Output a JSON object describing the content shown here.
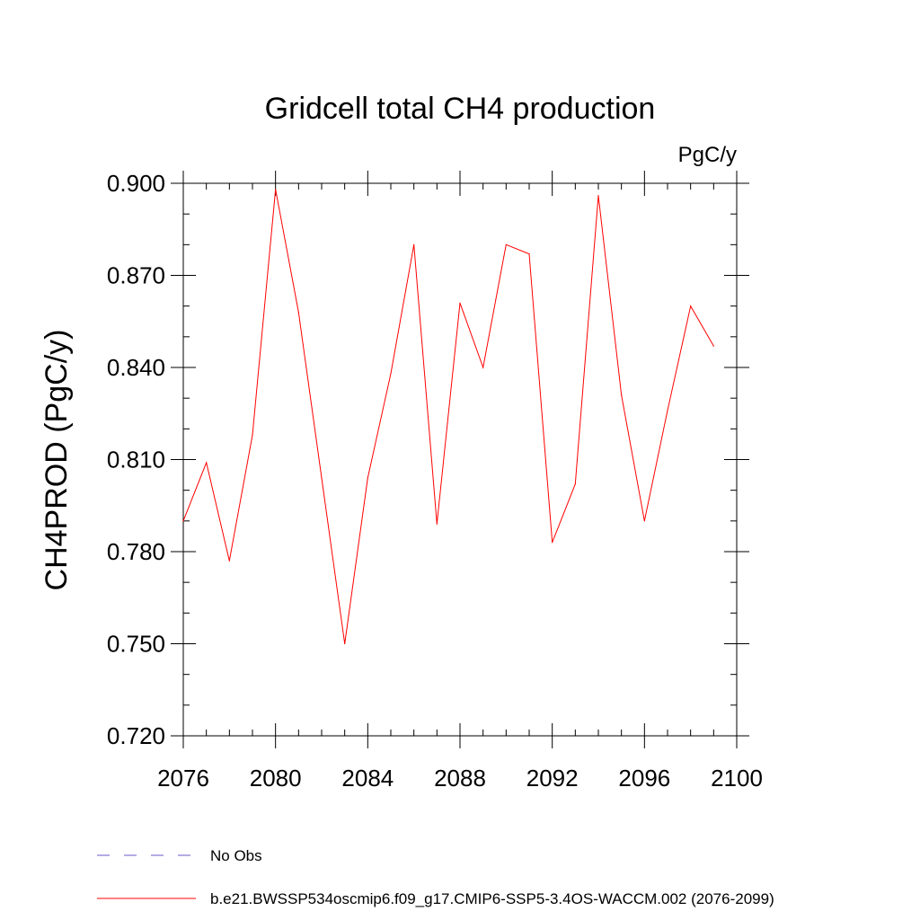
{
  "chart_data": {
    "type": "line",
    "title": "Gridcell total CH4 production",
    "units_label": "PgC/y",
    "ylabel": "CH4PROD  (PgC/y)",
    "xlabel": "",
    "xlim": [
      2076,
      2100
    ],
    "ylim": [
      0.72,
      0.9
    ],
    "x_ticks": [
      2076,
      2080,
      2084,
      2088,
      2092,
      2096,
      2100
    ],
    "y_ticks": [
      0.72,
      0.75,
      0.78,
      0.81,
      0.84,
      0.87,
      0.9
    ],
    "y_tick_labels": [
      "0.720",
      "0.750",
      "0.780",
      "0.810",
      "0.840",
      "0.870",
      "0.900"
    ],
    "grid": false,
    "series": [
      {
        "name": "b.e21.BWSSP534oscmip6.f09_g17.CMIP6-SSP5-3.4OS-WACCM.002 (2076-2099)",
        "color": "#ff0000",
        "x": [
          2076,
          2077,
          2078,
          2079,
          2080,
          2081,
          2082,
          2083,
          2084,
          2085,
          2086,
          2087,
          2088,
          2089,
          2090,
          2091,
          2092,
          2093,
          2094,
          2095,
          2096,
          2097,
          2098,
          2099
        ],
        "values": [
          0.79,
          0.809,
          0.777,
          0.818,
          0.898,
          0.858,
          0.804,
          0.75,
          0.804,
          0.838,
          0.88,
          0.789,
          0.861,
          0.84,
          0.88,
          0.877,
          0.783,
          0.802,
          0.896,
          0.831,
          0.79,
          0.826,
          0.86,
          0.847
        ]
      }
    ],
    "legend": {
      "placement": "bottom-left",
      "entries": [
        {
          "label": "No Obs",
          "style": "dashed",
          "color": "#6a5acd"
        },
        {
          "label": "b.e21.BWSSP534oscmip6.f09_g17.CMIP6-SSP5-3.4OS-WACCM.002 (2076-2099)",
          "style": "solid",
          "color": "#ff0000"
        }
      ]
    }
  }
}
